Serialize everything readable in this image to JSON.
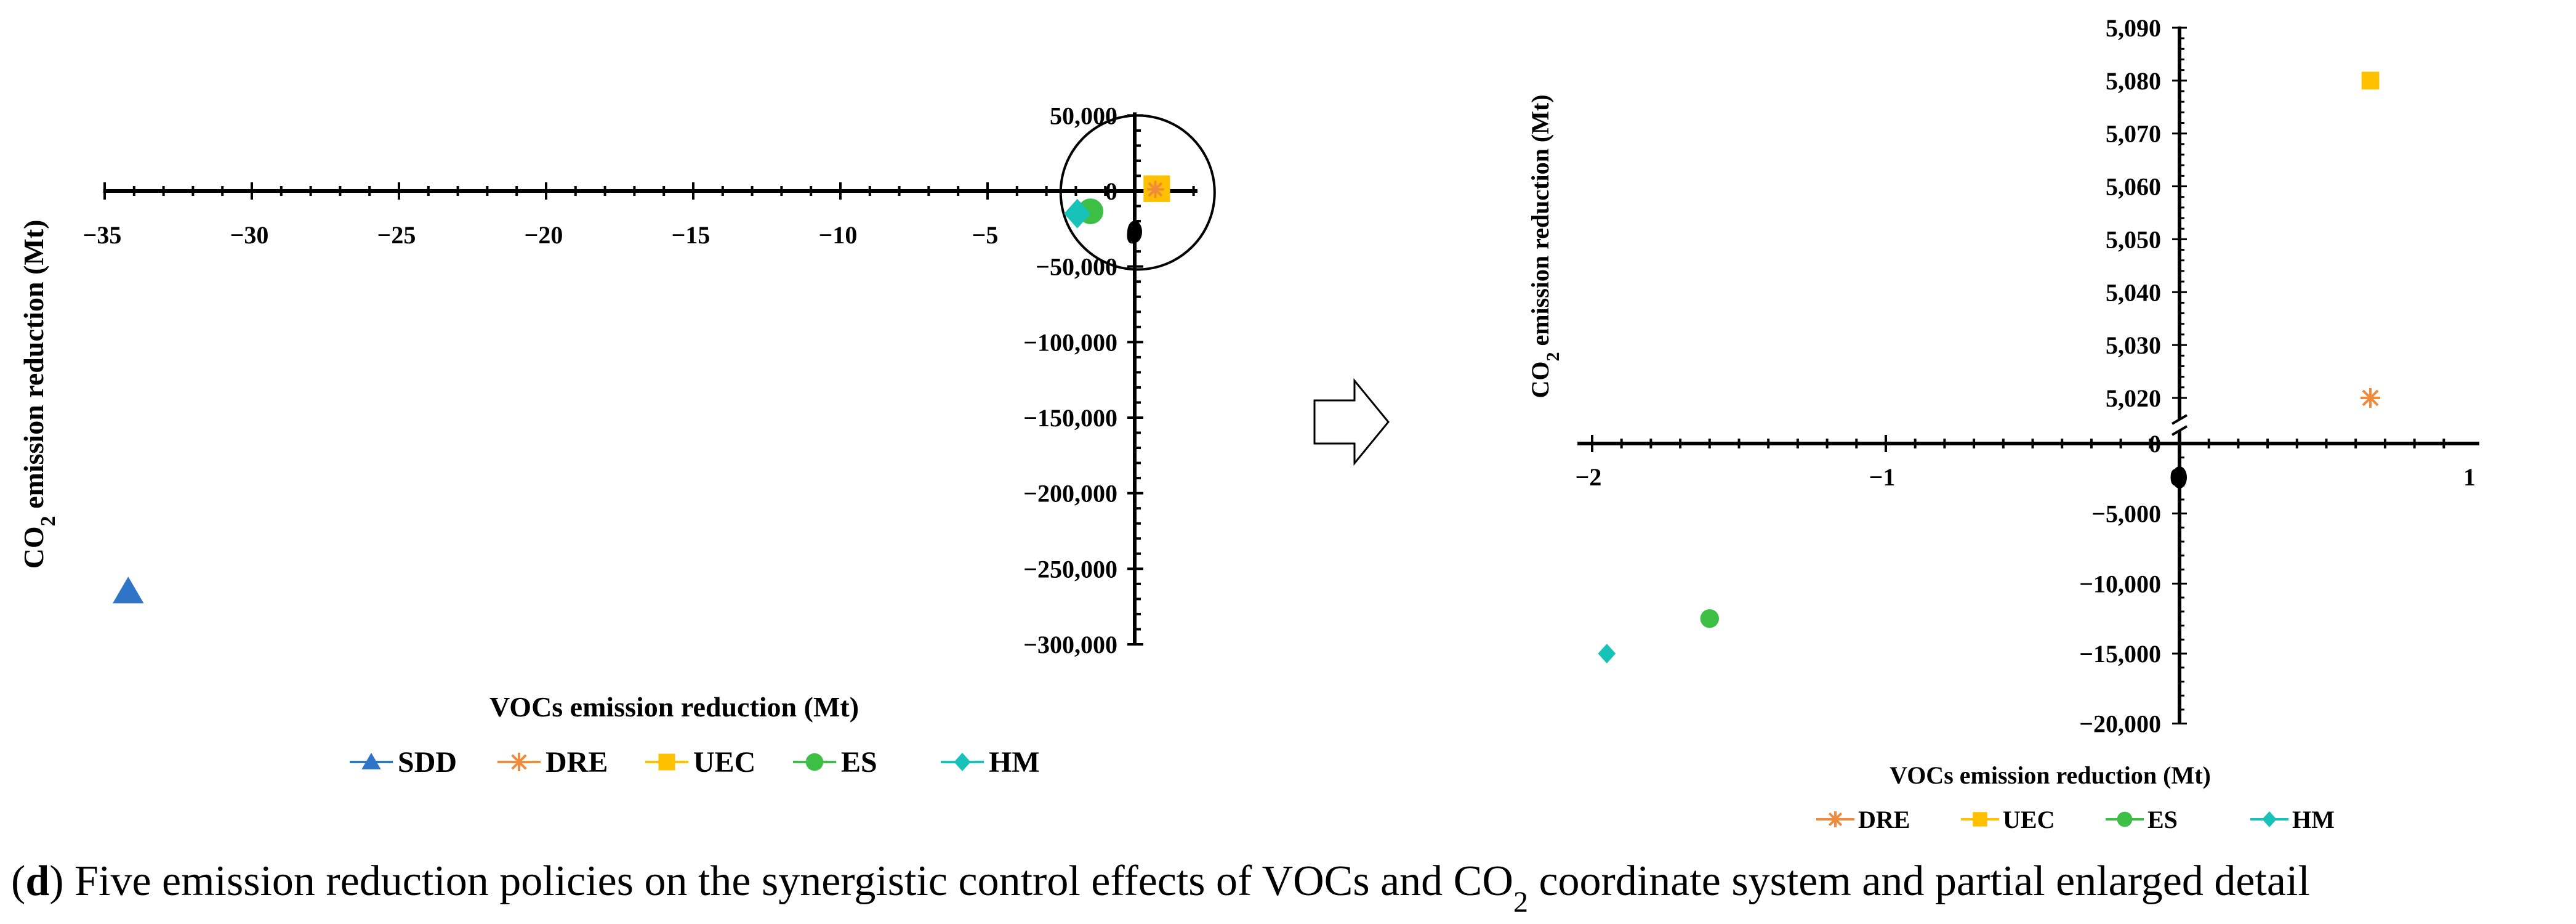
{
  "chart_data": [
    {
      "id": "main",
      "type": "scatter",
      "xlabel": "VOCs emission reduction (Mt)",
      "ylabel_parts": [
        "CO",
        "2",
        " emission reduction (Mt)"
      ],
      "xlim": [
        -35,
        2
      ],
      "ylim": [
        -300000,
        50000
      ],
      "x_ticks": [
        -35,
        -30,
        -25,
        -20,
        -15,
        -10,
        -5,
        0
      ],
      "x_tick_labels": [
        "−35",
        "−30",
        "−25",
        "−20",
        "−15",
        "−10",
        "−5",
        "0"
      ],
      "y_ticks": [
        50000,
        0,
        -50000,
        -100000,
        -150000,
        -200000,
        -250000,
        -300000
      ],
      "y_tick_labels": [
        "50,000",
        "0",
        "−50,000",
        "−100,000",
        "−150,000",
        "−200,000",
        "−250,000",
        "−300,000"
      ],
      "series": [
        {
          "name": "SDD",
          "color": "#2E75C8",
          "marker": "triangle",
          "x": -34.2,
          "y": -265000
        },
        {
          "name": "DRE",
          "color": "#F08A3C",
          "marker": "asterisk",
          "x": 0.65,
          "y": 5020
        },
        {
          "name": "UEC",
          "color": "#FFC000",
          "marker": "square",
          "x": 0.65,
          "y": 5080
        },
        {
          "name": "ES",
          "color": "#3DBE45",
          "marker": "circle",
          "x": -1.6,
          "y": -12500
        },
        {
          "name": "HM",
          "color": "#17C3B9",
          "marker": "diamond",
          "x": -1.95,
          "y": -15000
        }
      ],
      "legend": [
        "SDD",
        "DRE",
        "UEC",
        "ES",
        "HM"
      ],
      "annotation": "circle highlighting region near origin"
    },
    {
      "id": "detail",
      "type": "scatter",
      "xlabel": "VOCs emission reduction (Mt)",
      "ylabel_parts": [
        "CO",
        "2",
        " emission reduction (Mt)"
      ],
      "xlim": [
        -2,
        1
      ],
      "y_axis_break": true,
      "y_upper_range": [
        5015,
        5090
      ],
      "y_lower_range": [
        -20000,
        0
      ],
      "x_ticks": [
        -2,
        -1,
        0,
        1
      ],
      "x_tick_labels": [
        "−2",
        "−1",
        "0",
        "1"
      ],
      "y_upper_ticks": [
        5090,
        5080,
        5070,
        5060,
        5050,
        5040,
        5030,
        5020
      ],
      "y_upper_tick_labels": [
        "5,090",
        "5,080",
        "5,070",
        "5,060",
        "5,050",
        "5,040",
        "5,030",
        "5,020"
      ],
      "y_lower_ticks": [
        0,
        -5000,
        -10000,
        -15000,
        -20000
      ],
      "y_lower_tick_labels": [
        "0",
        "−5,000",
        "−10,000",
        "−15,000",
        "−20,000"
      ],
      "series": [
        {
          "name": "DRE",
          "color": "#F08A3C",
          "marker": "asterisk",
          "x": 0.65,
          "y": 5020
        },
        {
          "name": "UEC",
          "color": "#FFC000",
          "marker": "square",
          "x": 0.65,
          "y": 5080
        },
        {
          "name": "ES",
          "color": "#3DBE45",
          "marker": "circle",
          "x": -1.6,
          "y": -12500
        },
        {
          "name": "HM",
          "color": "#17C3B9",
          "marker": "diamond",
          "x": -1.95,
          "y": -15000
        }
      ],
      "legend": [
        "DRE",
        "UEC",
        "ES",
        "HM"
      ]
    }
  ],
  "caption": {
    "bold_letter": "d",
    "text_before": ") Five emission reduction policies on the synergistic control effects of VOCs and CO",
    "subscript": "2",
    "text_after": " coordinate system and partial enlarged detail"
  }
}
